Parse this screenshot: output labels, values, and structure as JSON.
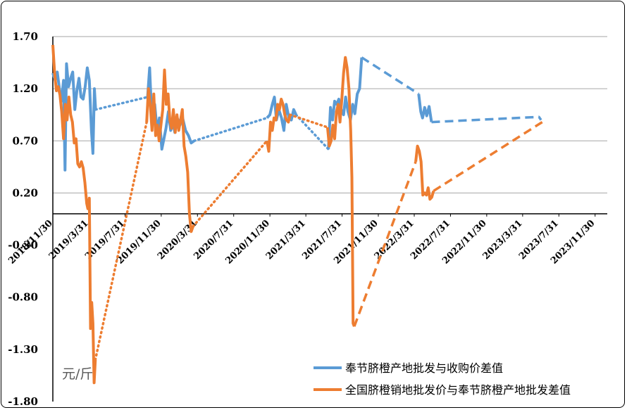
{
  "chart_data": {
    "type": "line",
    "unit_label": "元/斤",
    "ylim": [
      -1.8,
      1.7
    ],
    "y_ticks": [
      "1.70",
      "1.20",
      "0.70",
      "0.20",
      "-0.30",
      "-0.80",
      "-1.30",
      "-1.80"
    ],
    "y_tick_values": [
      1.7,
      1.2,
      0.7,
      0.2,
      -0.3,
      -0.8,
      -1.3,
      -1.8
    ],
    "x_ticks": [
      "2018/11/30",
      "2019/3/31",
      "2019/7/31",
      "2019/11/30",
      "2020/3/31",
      "2020/7/31",
      "2020/11/30",
      "2021/3/31",
      "2021/7/31",
      "2021/11/30",
      "2022/3/31",
      "2022/7/31",
      "2022/11/30",
      "2023/3/31",
      "2023/7/31",
      "2023/11/30"
    ],
    "x_tick_dates": [
      "2018-11-30",
      "2019-03-31",
      "2019-07-31",
      "2019-11-30",
      "2020-03-31",
      "2020-07-31",
      "2020-11-30",
      "2021-03-31",
      "2021-07-31",
      "2021-11-30",
      "2022-03-31",
      "2022-07-31",
      "2022-11-30",
      "2023-03-31",
      "2023-07-31",
      "2023-11-30"
    ],
    "xlim": [
      "2018-11-30",
      "2024-01-10"
    ],
    "grid": "horizontal",
    "legend_position": "bottom-right",
    "series": [
      {
        "name": "奉节脐橙产地批发与收购价差值",
        "color": "#5B9BD5",
        "segments": [
          {
            "style": "solid",
            "points": [
              [
                "2018-11-30",
                1.35
              ],
              [
                "2018-12-08",
                1.28
              ],
              [
                "2018-12-15",
                1.36
              ],
              [
                "2018-12-22",
                1.2
              ],
              [
                "2018-12-29",
                1.08
              ],
              [
                "2019-01-05",
                1.28
              ],
              [
                "2019-01-10",
                0.42
              ],
              [
                "2019-01-15",
                1.44
              ],
              [
                "2019-01-22",
                1.22
              ],
              [
                "2019-01-29",
                1.3
              ],
              [
                "2019-02-05",
                1.36
              ],
              [
                "2019-02-12",
                1.0
              ],
              [
                "2019-02-19",
                1.18
              ],
              [
                "2019-02-26",
                1.3
              ],
              [
                "2019-03-05",
                1.12
              ],
              [
                "2019-03-12",
                1.1
              ],
              [
                "2019-03-19",
                1.22
              ],
              [
                "2019-03-26",
                1.4
              ],
              [
                "2019-04-02",
                1.28
              ],
              [
                "2019-04-09",
                0.8
              ],
              [
                "2019-04-14",
                0.58
              ],
              [
                "2019-04-19",
                1.2
              ],
              [
                "2019-04-23",
                1.0
              ]
            ]
          },
          {
            "style": "dotted",
            "points": [
              [
                "2019-04-23",
                1.0
              ],
              [
                "2019-10-15",
                1.12
              ]
            ]
          },
          {
            "style": "solid",
            "points": [
              [
                "2019-10-15",
                1.12
              ],
              [
                "2019-10-22",
                1.4
              ],
              [
                "2019-10-30",
                0.85
              ],
              [
                "2019-11-08",
                1.05
              ],
              [
                "2019-11-16",
                0.8
              ],
              [
                "2019-11-24",
                0.92
              ],
              [
                "2019-12-02",
                0.62
              ],
              [
                "2019-12-09",
                0.72
              ],
              [
                "2019-12-16",
                0.82
              ],
              [
                "2019-12-24",
                0.98
              ],
              [
                "2020-01-01",
                0.8
              ],
              [
                "2020-01-08",
                0.88
              ],
              [
                "2020-01-15",
                0.78
              ],
              [
                "2020-01-23",
                0.92
              ],
              [
                "2020-02-01",
                0.85
              ],
              [
                "2020-02-10",
                0.92
              ],
              [
                "2020-02-20",
                0.8
              ],
              [
                "2020-03-01",
                0.75
              ],
              [
                "2020-03-10",
                0.68
              ],
              [
                "2020-03-20",
                0.7
              ]
            ]
          },
          {
            "style": "dotted",
            "points": [
              [
                "2020-03-20",
                0.7
              ],
              [
                "2020-11-20",
                0.92
              ]
            ]
          },
          {
            "style": "solid",
            "points": [
              [
                "2020-11-20",
                0.92
              ],
              [
                "2020-11-30",
                0.95
              ],
              [
                "2020-12-08",
                1.05
              ],
              [
                "2020-12-15",
                1.12
              ],
              [
                "2020-12-22",
                0.9
              ],
              [
                "2020-12-30",
                1.0
              ],
              [
                "2021-01-08",
                0.92
              ],
              [
                "2021-01-16",
                0.8
              ],
              [
                "2021-01-24",
                1.05
              ],
              [
                "2021-02-02",
                0.92
              ],
              [
                "2021-02-10",
                0.9
              ],
              [
                "2021-02-18",
                1.0
              ],
              [
                "2021-02-26",
                0.95
              ]
            ]
          },
          {
            "style": "dotted",
            "points": [
              [
                "2021-02-26",
                0.95
              ],
              [
                "2021-06-15",
                0.62
              ]
            ]
          },
          {
            "style": "solid",
            "points": [
              [
                "2021-06-15",
                0.62
              ],
              [
                "2021-06-22",
                1.02
              ],
              [
                "2021-06-29",
                0.9
              ],
              [
                "2021-07-06",
                1.08
              ],
              [
                "2021-07-13",
                1.05
              ],
              [
                "2021-07-20",
                1.1
              ],
              [
                "2021-07-28",
                1.0
              ],
              [
                "2021-08-05",
                0.95
              ],
              [
                "2021-08-12",
                1.12
              ],
              [
                "2021-08-20",
                0.98
              ],
              [
                "2021-08-28",
                0.9
              ],
              [
                "2021-09-05",
                1.05
              ],
              [
                "2021-09-12",
                0.96
              ],
              [
                "2021-09-20",
                1.15
              ],
              [
                "2021-09-28",
                1.2
              ],
              [
                "2021-10-05",
                1.5
              ]
            ]
          },
          {
            "style": "dashed",
            "points": [
              [
                "2021-10-05",
                1.5
              ],
              [
                "2022-04-15",
                1.15
              ]
            ]
          },
          {
            "style": "solid",
            "points": [
              [
                "2022-04-15",
                1.15
              ],
              [
                "2022-04-22",
                0.98
              ],
              [
                "2022-04-28",
                0.92
              ],
              [
                "2022-05-05",
                1.02
              ],
              [
                "2022-05-12",
                0.94
              ],
              [
                "2022-05-20",
                1.03
              ],
              [
                "2022-05-28",
                0.88
              ]
            ]
          },
          {
            "style": "dashed",
            "points": [
              [
                "2022-05-28",
                0.88
              ],
              [
                "2023-05-25",
                0.93
              ],
              [
                "2023-06-01",
                0.9
              ]
            ]
          }
        ]
      },
      {
        "name": "全国脐橙销地批发价与奉节脐橙产地批发差值",
        "color": "#ED7D31",
        "segments": [
          {
            "style": "solid",
            "points": [
              [
                "2018-11-30",
                1.62
              ],
              [
                "2018-12-06",
                1.35
              ],
              [
                "2018-12-12",
                1.18
              ],
              [
                "2018-12-18",
                1.22
              ],
              [
                "2018-12-24",
                1.14
              ],
              [
                "2018-12-30",
                0.98
              ],
              [
                "2019-01-05",
                0.72
              ],
              [
                "2019-01-11",
                1.05
              ],
              [
                "2019-01-17",
                0.9
              ],
              [
                "2019-01-23",
                1.12
              ],
              [
                "2019-01-29",
                0.95
              ],
              [
                "2019-02-04",
                0.88
              ],
              [
                "2019-02-10",
                0.68
              ],
              [
                "2019-02-16",
                0.72
              ],
              [
                "2019-02-22",
                0.48
              ],
              [
                "2019-02-28",
                0.45
              ],
              [
                "2019-03-06",
                0.5
              ],
              [
                "2019-03-12",
                0.44
              ],
              [
                "2019-03-18",
                0.3
              ],
              [
                "2019-03-24",
                0.1
              ],
              [
                "2019-03-28",
                0.05
              ],
              [
                "2019-04-02",
                0.15
              ],
              [
                "2019-04-06",
                -1.1
              ],
              [
                "2019-04-10",
                -0.85
              ],
              [
                "2019-04-14",
                -1.05
              ],
              [
                "2019-04-18",
                -1.62
              ],
              [
                "2019-04-22",
                -1.4
              ]
            ]
          },
          {
            "style": "dotted",
            "points": [
              [
                "2019-04-22",
                -1.4
              ],
              [
                "2019-10-12",
                0.88
              ]
            ]
          },
          {
            "style": "solid",
            "points": [
              [
                "2019-10-12",
                0.88
              ],
              [
                "2019-10-18",
                1.2
              ],
              [
                "2019-10-24",
                1.05
              ],
              [
                "2019-10-30",
                0.8
              ],
              [
                "2019-11-05",
                1.15
              ],
              [
                "2019-11-11",
                0.75
              ],
              [
                "2019-11-17",
                0.85
              ],
              [
                "2019-11-23",
                0.7
              ],
              [
                "2019-11-29",
                0.85
              ],
              [
                "2019-12-05",
                1.0
              ],
              [
                "2019-12-11",
                1.38
              ],
              [
                "2019-12-17",
                1.05
              ],
              [
                "2019-12-23",
                1.15
              ],
              [
                "2019-12-29",
                0.9
              ],
              [
                "2020-01-04",
                0.82
              ],
              [
                "2020-01-10",
                1.0
              ],
              [
                "2020-01-16",
                0.78
              ],
              [
                "2020-01-22",
                0.95
              ],
              [
                "2020-01-28",
                0.8
              ],
              [
                "2020-02-03",
                0.9
              ],
              [
                "2020-02-09",
                1.0
              ],
              [
                "2020-02-15",
                0.65
              ],
              [
                "2020-02-21",
                0.55
              ],
              [
                "2020-02-27",
                0.4
              ],
              [
                "2020-03-04",
                0.0
              ],
              [
                "2020-03-10",
                -0.17
              ],
              [
                "2020-03-16",
                -0.12
              ]
            ]
          },
          {
            "style": "dotted",
            "points": [
              [
                "2020-03-16",
                -0.12
              ],
              [
                "2020-11-20",
                0.7
              ]
            ]
          },
          {
            "style": "solid",
            "points": [
              [
                "2020-11-20",
                0.7
              ],
              [
                "2020-11-26",
                0.6
              ],
              [
                "2020-12-02",
                0.88
              ],
              [
                "2020-12-08",
                0.8
              ],
              [
                "2020-12-14",
                0.92
              ],
              [
                "2020-12-20",
                0.9
              ],
              [
                "2020-12-26",
                1.05
              ],
              [
                "2021-01-01",
                1.0
              ],
              [
                "2021-01-07",
                1.1
              ],
              [
                "2021-01-13",
                1.05
              ],
              [
                "2021-01-19",
                0.95
              ],
              [
                "2021-01-25",
                0.9
              ],
              [
                "2021-01-31",
                0.88
              ],
              [
                "2021-02-06",
                0.95
              ]
            ]
          },
          {
            "style": "dotted",
            "points": [
              [
                "2021-02-06",
                0.95
              ],
              [
                "2021-06-12",
                0.83
              ]
            ]
          },
          {
            "style": "solid",
            "points": [
              [
                "2021-06-12",
                0.83
              ],
              [
                "2021-06-18",
                0.65
              ],
              [
                "2021-06-24",
                0.7
              ],
              [
                "2021-06-30",
                0.85
              ],
              [
                "2021-07-06",
                0.72
              ],
              [
                "2021-07-12",
                0.98
              ],
              [
                "2021-07-18",
                1.05
              ],
              [
                "2021-07-24",
                0.88
              ],
              [
                "2021-07-30",
                1.1
              ],
              [
                "2021-08-05",
                1.35
              ],
              [
                "2021-08-11",
                1.5
              ],
              [
                "2021-08-17",
                1.4
              ],
              [
                "2021-08-23",
                1.2
              ],
              [
                "2021-08-29",
                0.8
              ],
              [
                "2021-09-02",
                0.35
              ],
              [
                "2021-09-06",
                -1.05
              ],
              [
                "2021-09-10",
                -1.08
              ]
            ]
          },
          {
            "style": "dashed",
            "points": [
              [
                "2021-09-10",
                -1.08
              ],
              [
                "2022-04-05",
                0.5
              ]
            ]
          },
          {
            "style": "solid",
            "points": [
              [
                "2022-04-05",
                0.5
              ],
              [
                "2022-04-11",
                0.65
              ],
              [
                "2022-04-17",
                0.6
              ],
              [
                "2022-04-23",
                0.5
              ],
              [
                "2022-04-29",
                0.18
              ],
              [
                "2022-05-05",
                0.2
              ],
              [
                "2022-05-11",
                0.18
              ],
              [
                "2022-05-17",
                0.25
              ],
              [
                "2022-05-23",
                0.14
              ],
              [
                "2022-05-29",
                0.16
              ],
              [
                "2022-06-04",
                0.22
              ]
            ]
          },
          {
            "style": "dashed",
            "points": [
              [
                "2022-06-04",
                0.22
              ],
              [
                "2023-06-05",
                0.88
              ]
            ]
          }
        ]
      }
    ]
  }
}
